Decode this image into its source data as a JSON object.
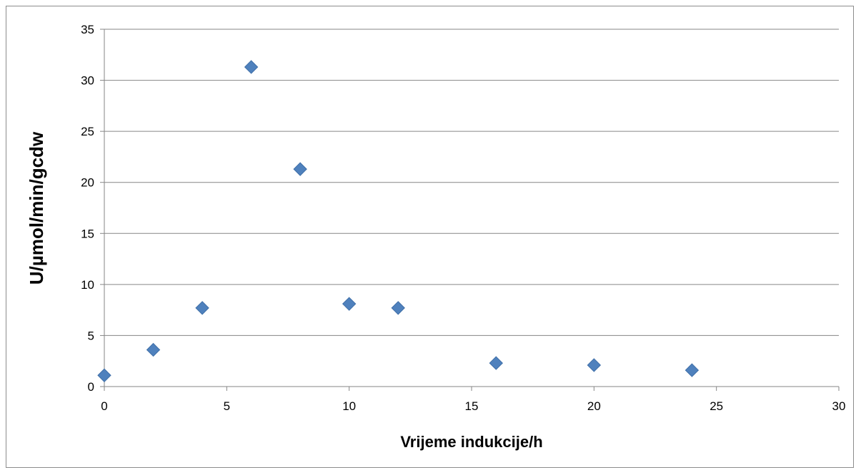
{
  "chart_data": {
    "type": "scatter",
    "title": "",
    "xlabel": "Vrijeme indukcije/h",
    "ylabel": "U/µmol/min/gcdw",
    "xlim": [
      0,
      30
    ],
    "ylim": [
      0,
      35
    ],
    "xticks": [
      0,
      5,
      10,
      15,
      20,
      25,
      30
    ],
    "yticks": [
      0,
      5,
      10,
      15,
      20,
      25,
      30,
      35
    ],
    "grid": "horizontal",
    "legend": "none",
    "marker": "diamond",
    "color": "#4f81bd",
    "series": [
      {
        "points": [
          {
            "x": 0,
            "y": 1.1
          },
          {
            "x": 2,
            "y": 3.6
          },
          {
            "x": 4,
            "y": 7.7
          },
          {
            "x": 6,
            "y": 31.3
          },
          {
            "x": 8,
            "y": 21.3
          },
          {
            "x": 10,
            "y": 8.1
          },
          {
            "x": 12,
            "y": 7.7
          },
          {
            "x": 16,
            "y": 2.3
          },
          {
            "x": 20,
            "y": 2.1
          },
          {
            "x": 24,
            "y": 1.6
          }
        ]
      }
    ]
  }
}
